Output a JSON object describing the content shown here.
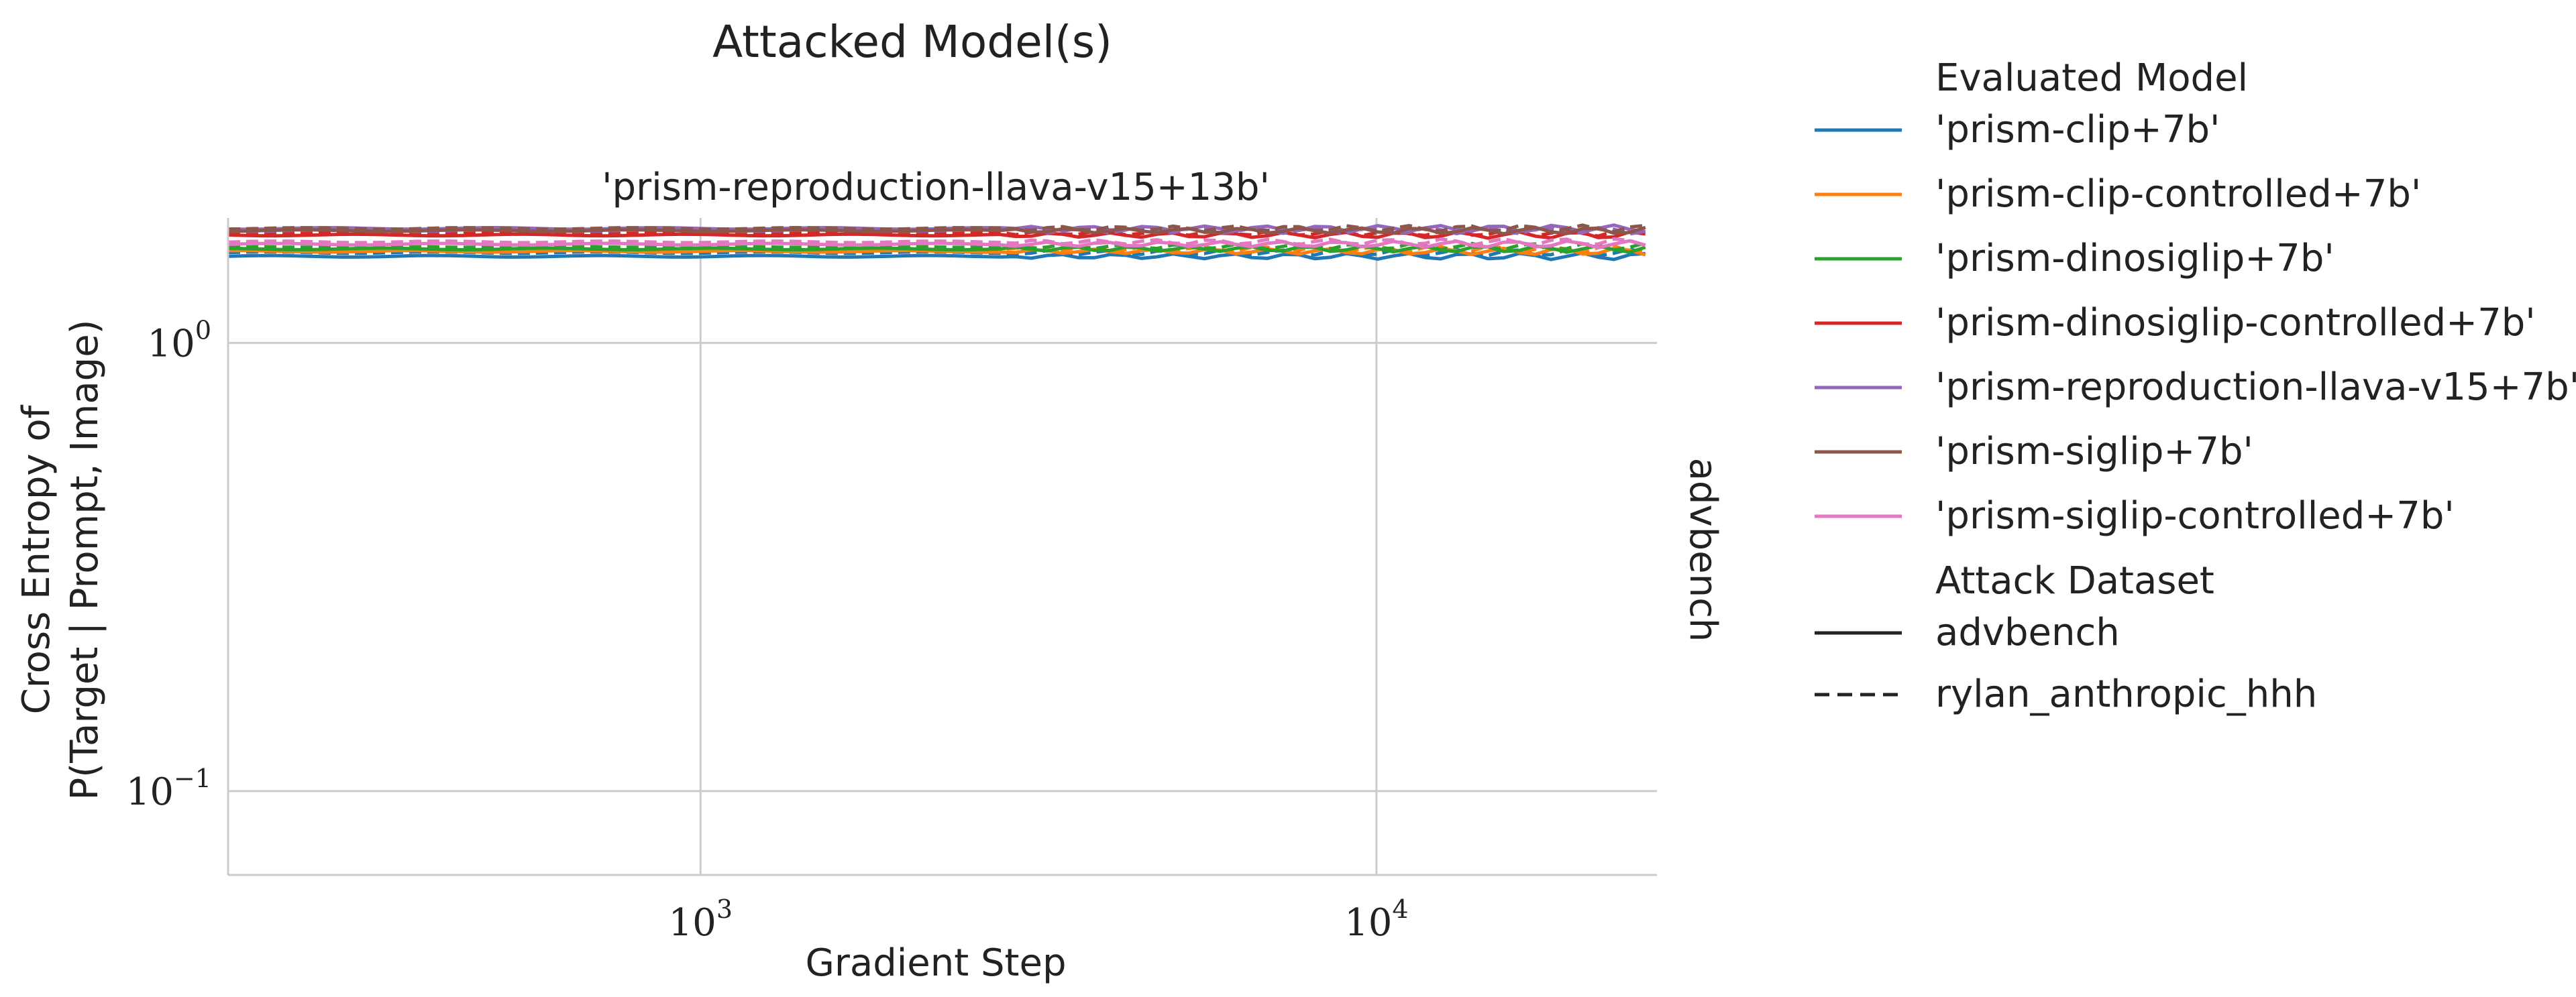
{
  "chart_data": {
    "type": "line",
    "suptitle": "Attacked Model(s)",
    "title": "'prism-reproduction-llava-v15+13b'",
    "row_label": "advbench",
    "xlabel": "Gradient Step",
    "ylabel_lines": [
      "Cross Entropy of",
      "P(Target | Prompt, Image)"
    ],
    "x_scale": "log",
    "y_scale": "log",
    "xlim": [
      200,
      26000
    ],
    "ylim": [
      0.065,
      1.9
    ],
    "x_ticks": [
      {
        "value": 1000,
        "base": "10",
        "exp": "3"
      },
      {
        "value": 10000,
        "base": "10",
        "exp": "4"
      }
    ],
    "y_ticks": [
      {
        "value": 1,
        "base": "10",
        "exp": "0"
      },
      {
        "value": 0.1,
        "base": "10",
        "exp": "−1"
      }
    ],
    "grid": true,
    "legend_placement": "right",
    "legend": {
      "hue_title": "Evaluated Model",
      "style_title": "Attack Dataset",
      "styles": [
        {
          "name": "advbench",
          "dash": "solid"
        },
        {
          "name": "rylan_anthropic_hhh",
          "dash": "dashed"
        }
      ]
    },
    "series": [
      {
        "name": "'prism-clip+7b'",
        "color": "#1f77b4",
        "advbench": 1.56,
        "rylan_anthropic_hhh": 1.59
      },
      {
        "name": "'prism-clip-controlled+7b'",
        "color": "#ff7f0e",
        "advbench": 1.6,
        "rylan_anthropic_hhh": 1.62
      },
      {
        "name": "'prism-dinosiglip+7b'",
        "color": "#2ca02c",
        "advbench": 1.62,
        "rylan_anthropic_hhh": 1.64
      },
      {
        "name": "'prism-dinosiglip-controlled+7b'",
        "color": "#d62728",
        "advbench": 1.74,
        "rylan_anthropic_hhh": 1.76
      },
      {
        "name": "'prism-reproduction-llava-v15+7b'",
        "color": "#9467bd",
        "advbench": 1.8,
        "rylan_anthropic_hhh": 1.78
      },
      {
        "name": "'prism-siglip+7b'",
        "color": "#8c564b",
        "advbench": 1.78,
        "rylan_anthropic_hhh": 1.8
      },
      {
        "name": "'prism-siglip-controlled+7b'",
        "color": "#e377c2",
        "advbench": 1.66,
        "rylan_anthropic_hhh": 1.68
      }
    ]
  }
}
